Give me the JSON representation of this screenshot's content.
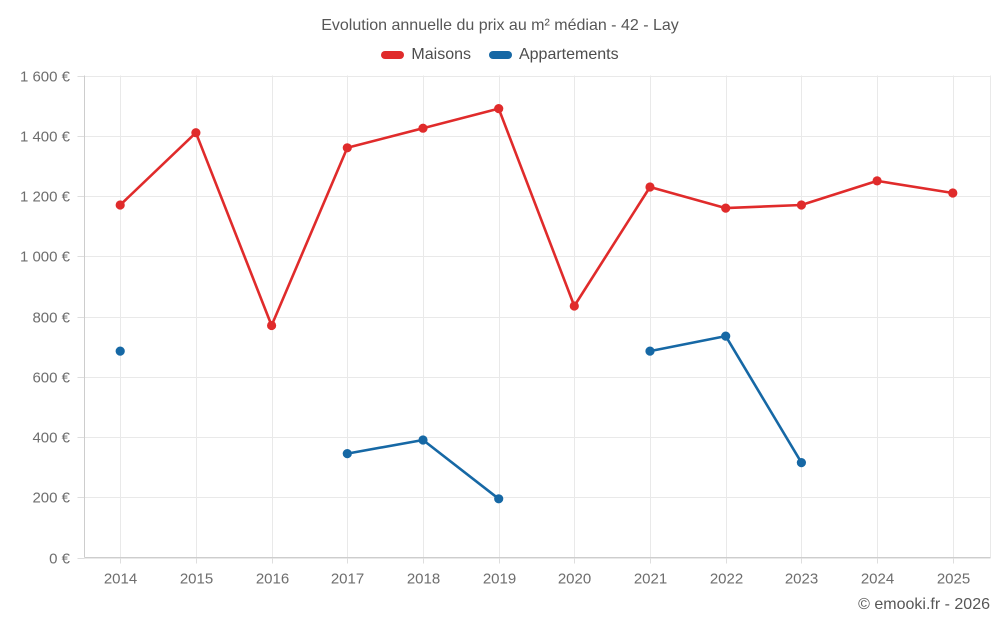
{
  "chart_data": {
    "type": "line",
    "title": "Evolution annuelle du prix au m² médian - 42 - Lay",
    "categories": [
      "2014",
      "2015",
      "2016",
      "2017",
      "2018",
      "2019",
      "2020",
      "2021",
      "2022",
      "2023",
      "2024",
      "2025"
    ],
    "series": [
      {
        "name": "Maisons",
        "color": "#e02b2b",
        "values": [
          1170,
          1410,
          770,
          1360,
          1425,
          1490,
          835,
          1230,
          1160,
          1170,
          1250,
          1210
        ]
      },
      {
        "name": "Appartements",
        "color": "#1668a5",
        "values": [
          685,
          null,
          null,
          345,
          390,
          195,
          null,
          685,
          735,
          315,
          null,
          null
        ]
      }
    ],
    "ylim": [
      0,
      1600
    ],
    "y_tick_step": 200,
    "y_tick_labels": [
      "0 €",
      "200 €",
      "400 €",
      "600 €",
      "800 €",
      "1 000 €",
      "1 200 €",
      "1 400 €",
      "1 600 €"
    ],
    "grid": true,
    "legend_position": "top",
    "footer": "© emooki.fr - 2026",
    "colors": {
      "grid": "#e9e9e9",
      "axis": "#cdcdcd",
      "tick": "#dedede",
      "tick_text": "#6e6e6e"
    }
  }
}
